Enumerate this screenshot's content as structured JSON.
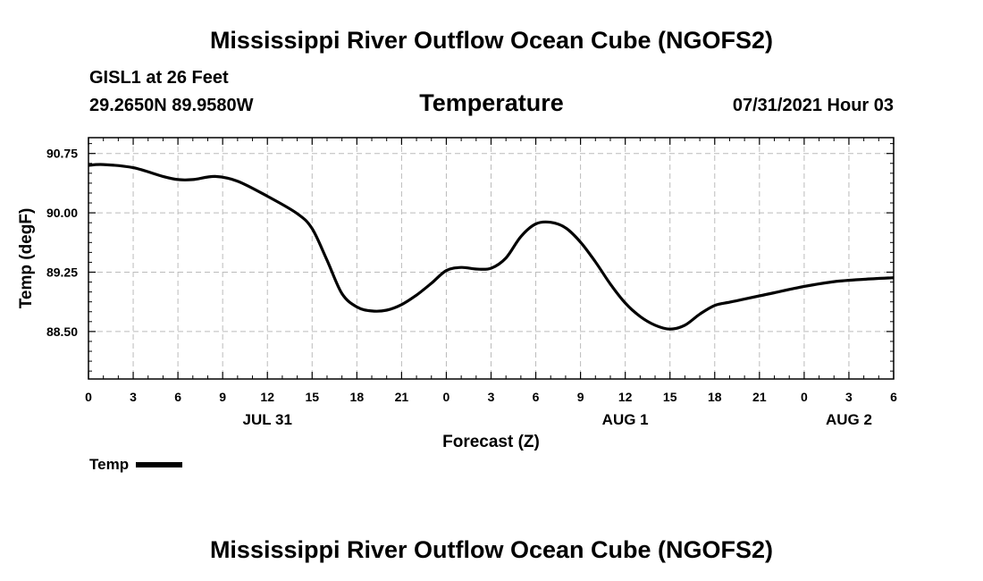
{
  "header": {
    "title": "Mississippi River Outflow Ocean Cube (NGOFS2)",
    "station": "GISL1 at 26 Feet",
    "coordinates": "29.2650N  89.9580W",
    "variable": "Temperature",
    "datetime": "07/31/2021 Hour 03"
  },
  "footer": {
    "title": "Mississippi River Outflow Ocean Cube (NGOFS2)"
  },
  "legend": {
    "label": "Temp"
  },
  "colors": {
    "line": "#000000",
    "grid": "#bbbbbb"
  },
  "chart_data": {
    "type": "line",
    "title": "Temperature",
    "xlabel": "Forecast (Z)",
    "ylabel": "Temp (degF)",
    "xlim": [
      0,
      54
    ],
    "ylim": [
      87.9,
      90.95
    ],
    "x_ticks": [
      0,
      3,
      6,
      9,
      12,
      15,
      18,
      21,
      24,
      27,
      30,
      33,
      36,
      39,
      42,
      45,
      48,
      51,
      54
    ],
    "x_tick_labels": [
      "0",
      "3",
      "6",
      "9",
      "12",
      "15",
      "18",
      "21",
      "0",
      "3",
      "6",
      "9",
      "12",
      "15",
      "18",
      "21",
      "0",
      "3",
      "6"
    ],
    "date_labels": [
      {
        "x": 12,
        "label": "JUL 31"
      },
      {
        "x": 36,
        "label": "AUG 1"
      },
      {
        "x": 51,
        "label": "AUG 2"
      }
    ],
    "y_ticks": [
      88.5,
      89.25,
      90.0,
      90.75
    ],
    "y_tick_labels": [
      "88.50",
      "89.25",
      "90.00",
      "90.75"
    ],
    "grid": true,
    "legend_position": "bottom-left",
    "series": [
      {
        "name": "Temp",
        "x": [
          0,
          1,
          3,
          5,
          6,
          7,
          8.5,
          10,
          12,
          14,
          15,
          16,
          17,
          18,
          19,
          20,
          21,
          22,
          23,
          24,
          25,
          26,
          27,
          28,
          29,
          30,
          31,
          32,
          33,
          34,
          35,
          36,
          37,
          38,
          39,
          40,
          41,
          42,
          43,
          44,
          45,
          46,
          48,
          50,
          52,
          54
        ],
        "values": [
          90.6,
          90.61,
          90.57,
          90.46,
          90.42,
          90.42,
          90.46,
          90.4,
          90.21,
          89.99,
          89.8,
          89.4,
          88.98,
          88.81,
          88.76,
          88.77,
          88.84,
          88.96,
          89.11,
          89.27,
          89.31,
          89.29,
          89.3,
          89.43,
          89.7,
          89.86,
          89.88,
          89.81,
          89.63,
          89.38,
          89.1,
          88.86,
          88.69,
          88.58,
          88.53,
          88.58,
          88.72,
          88.83,
          88.87,
          88.91,
          88.95,
          88.99,
          89.07,
          89.13,
          89.16,
          89.18
        ]
      }
    ]
  }
}
